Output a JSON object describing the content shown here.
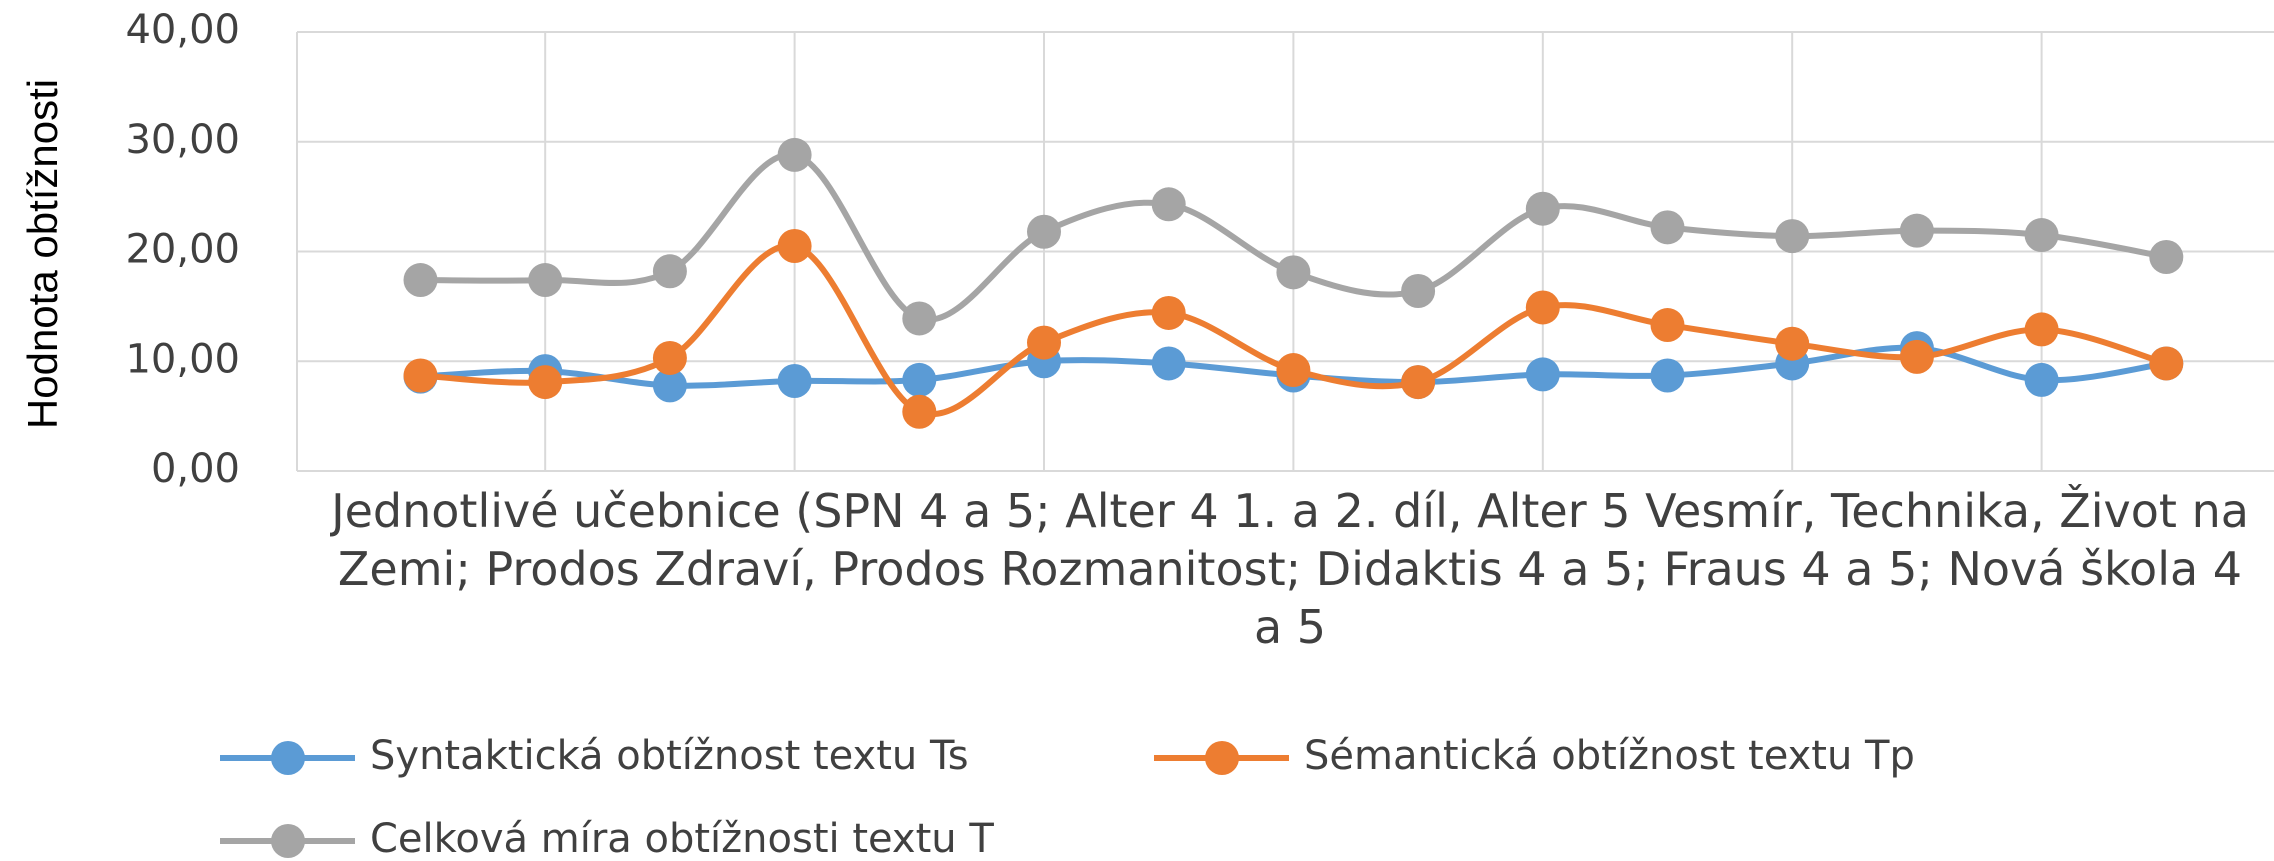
{
  "chart_data": {
    "type": "line",
    "y_label": "Hodnota obtížnosti",
    "x_label": "Jednotlivé učebnice (SPN 4 a 5; Alter 4 1. a 2. díl, Alter 5 Vesmír, Technika, Život na Zemi; Prodos Zdraví, Prodos Rozmanitost; Didaktis 4 a 5; Fraus 4 a 5; Nová škola 4 a 5",
    "categories": [
      null,
      null,
      null,
      null,
      null,
      null,
      null,
      null,
      null,
      null,
      null,
      null,
      null,
      null,
      null
    ],
    "series": [
      {
        "name": "Syntaktická obtížnost textu Ts",
        "color": "#5b9bd5",
        "values": [
          8.6,
          9.1,
          7.8,
          8.2,
          8.3,
          10.0,
          9.8,
          8.7,
          8.1,
          8.8,
          8.7,
          9.8,
          11.2,
          8.3,
          9.8
        ]
      },
      {
        "name": "Sémantická obtížnost textu Tp",
        "color": "#ed7d31",
        "values": [
          8.7,
          8.1,
          10.3,
          20.5,
          5.4,
          11.7,
          14.4,
          9.2,
          8.1,
          14.9,
          13.3,
          11.6,
          10.4,
          12.9,
          9.8
        ]
      },
      {
        "name": "Celková míra obtížnosti textu T",
        "color": "#a5a5a5",
        "values": [
          17.4,
          17.4,
          18.2,
          28.8,
          13.9,
          21.8,
          24.3,
          18.1,
          16.4,
          23.9,
          22.2,
          21.4,
          21.9,
          21.5,
          19.5
        ]
      }
    ],
    "ylim": [
      0,
      40
    ],
    "yticks": [
      {
        "value": 0,
        "label": "0,00"
      },
      {
        "value": 10,
        "label": "10,00"
      },
      {
        "value": 20,
        "label": "20,00"
      },
      {
        "value": 30,
        "label": "30,00"
      },
      {
        "value": 40,
        "label": "40,00"
      }
    ],
    "grid": true,
    "smooth": true,
    "legend": "bottom"
  }
}
